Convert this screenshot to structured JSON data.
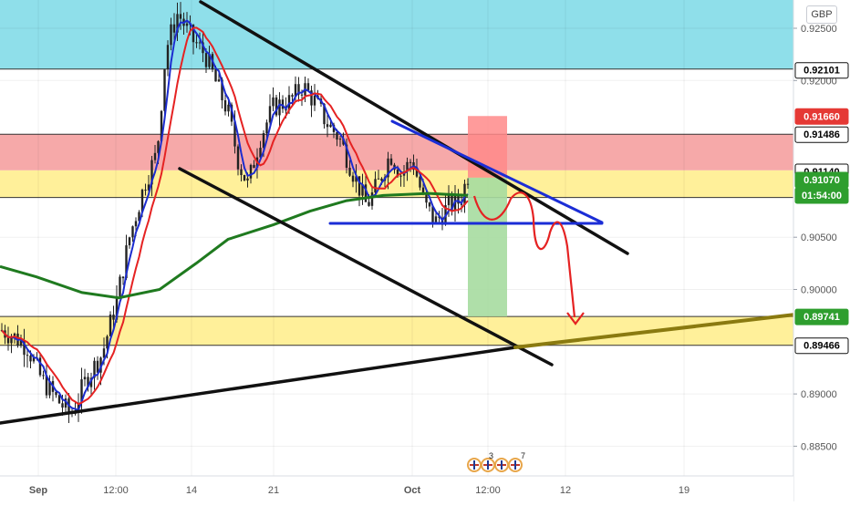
{
  "currency": "GBP",
  "colors": {
    "accent_blue_zone": "#8fdfea",
    "resistance_red": "#f6a9a9",
    "support_yellow": "#fff09a",
    "target_green": "#a6dba0",
    "stop_red": "#ff8a8a",
    "ma_fast_red": "#e52222",
    "ma_mid_blue": "#1c2ccf",
    "ma_slow_green": "#1f7a1f",
    "candle_color": "#222222",
    "price_tag_red": "#e53935",
    "price_tag_green": "#2e9e2e",
    "trendline_black": "#111111",
    "trendline_olive": "#8a7a10",
    "pattern_blue": "#1b2dd6",
    "forecast_red": "#e52222"
  },
  "price_axis": {
    "ticks": [
      "0.92500",
      "0.92000",
      "0.90500",
      "0.90000",
      "0.89000",
      "0.88500"
    ],
    "tags": [
      {
        "label": "0.92101",
        "style": "black-outline"
      },
      {
        "label": "0.91660",
        "style": "red"
      },
      {
        "label": "0.91486",
        "style": "black-outline"
      },
      {
        "label": "0.91140",
        "style": "black-outline"
      },
      {
        "label": "0.91070",
        "style": "green"
      },
      {
        "label": "01:54:00",
        "style": "green"
      },
      {
        "label": "0.89741",
        "style": "green"
      },
      {
        "label": "0.89466",
        "style": "black-outline"
      }
    ]
  },
  "time_axis": {
    "labels": [
      "Sep",
      "12:00",
      "14",
      "21",
      "Oct",
      "12:00",
      "12",
      "19"
    ]
  },
  "events": {
    "counts": [
      "3",
      "7"
    ]
  },
  "chart_data": {
    "type": "candlestick",
    "symbol_currency": "GBP",
    "y_axis_ticks": [
      0.925,
      0.92,
      0.905,
      0.9,
      0.89,
      0.885
    ],
    "x_axis_labels": [
      "Sep",
      "12:00",
      "14",
      "21",
      "Oct",
      "12:00",
      "12",
      "19"
    ],
    "grid": true,
    "zones": [
      {
        "kind": "resistance-cyan",
        "from": 0.9211,
        "to": 0.927
      },
      {
        "kind": "resistance-red",
        "from": 0.9114,
        "to": 0.91486
      },
      {
        "kind": "support-yellow",
        "from": 0.9088,
        "to": 0.9114
      },
      {
        "kind": "support-yellow",
        "from": 0.89466,
        "to": 0.89741
      }
    ],
    "price_tags": [
      0.92101,
      0.9166,
      0.91486,
      0.9114,
      0.9107,
      0.89741,
      0.89466
    ],
    "current_price": 0.9107,
    "countdown": "01:54:00",
    "trade": {
      "direction": "short",
      "stop": 0.9166,
      "entry": 0.9107,
      "target": 0.89741
    },
    "annotations": [
      "descending channel",
      "descending triangle",
      "rising trendline",
      "forecast path",
      "moving averages (red, blue, green)"
    ]
  }
}
